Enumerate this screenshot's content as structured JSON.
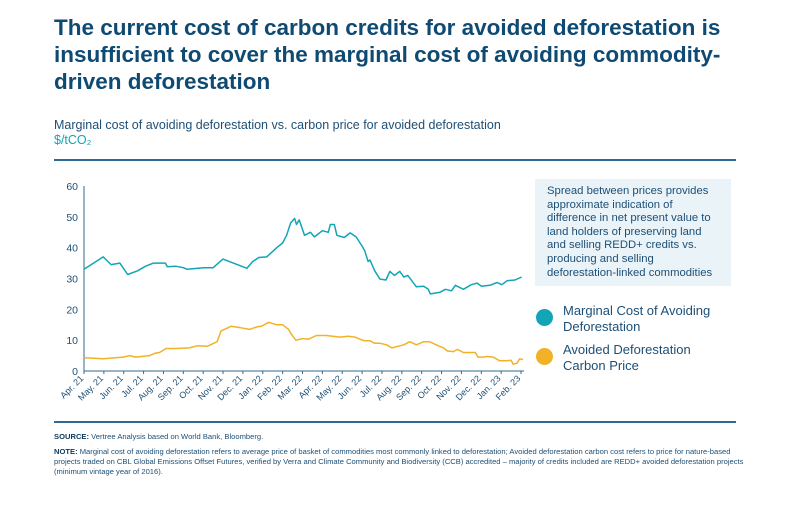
{
  "header": {
    "title": "The current cost of carbon credits for avoided deforestation is insufficient to cover the marginal cost of avoiding commodity-driven deforestation",
    "subtitle": "Marginal cost of avoiding deforestation vs. carbon price for avoided deforestation",
    "units": "$/tCO₂"
  },
  "annotation": "Spread between prices provides approximate indication of difference in net present value to land holders of preserving land and selling REDD+ credits vs. producing and selling deforestation-linked commodities",
  "footer": {
    "source_label": "SOURCE:",
    "source_text": " Vertree Analysis based on World Bank, Bloomberg.",
    "note_label": "NOTE:",
    "note_text": " Marginal cost of avoiding deforestation refers to average price of basket of commodities most commonly linked to deforestation; Avoided deforestation carbon cost refers to price for nature-based projects traded on CBL Global Emissions Offset Futures, verified by Verra and Climate Community and Biodiversity (CCB) accredited – majority of credits included are REDD+ avoided deforestation projects (minimum vintage year of 2016)."
  },
  "chart_data": {
    "type": "line",
    "title": "",
    "xlabel": "",
    "ylabel": "$/tCO₂",
    "ylim": [
      0,
      60
    ],
    "yticks": [
      0,
      10,
      20,
      30,
      40,
      50,
      60
    ],
    "xticks": [
      "Apr. 21",
      "May. 21",
      "Jun. 21",
      "Jul. 21",
      "Aug. 21",
      "Sep. 21",
      "Oct. 21",
      "Nov. 21",
      "Dec. 21",
      "Jan. 22",
      "Feb. 22",
      "Mar. 22",
      "Apr. 22",
      "May. 22",
      "Jun. 22",
      "Jul. 22",
      "Aug. 22",
      "Sep. 22",
      "Oct. 22",
      "Nov. 22",
      "Dec. 22",
      "Jan. 23",
      "Feb. 23"
    ],
    "xrange": [
      "2021-04-01",
      "2023-02-01"
    ],
    "grid": false,
    "legend_placement": "right",
    "series": [
      {
        "name": "Marginal Cost of Avoiding Deforestation",
        "color": "#12a5b5",
        "points": [
          [
            "2021-04-01",
            33
          ],
          [
            "2021-04-30",
            37
          ],
          [
            "2021-05-12",
            34.5
          ],
          [
            "2021-05-25",
            35
          ],
          [
            "2021-06-07",
            31.3
          ],
          [
            "2021-06-22",
            32.5
          ],
          [
            "2021-07-04",
            34
          ],
          [
            "2021-07-16",
            35
          ],
          [
            "2021-08-04",
            35
          ],
          [
            "2021-08-07",
            33.8
          ],
          [
            "2021-08-19",
            34
          ],
          [
            "2021-09-01",
            33.5
          ],
          [
            "2021-09-07",
            33
          ],
          [
            "2021-10-01",
            33.5
          ],
          [
            "2021-10-16",
            33.5
          ],
          [
            "2021-11-01",
            36.3
          ],
          [
            "2021-12-07",
            33.3
          ],
          [
            "2021-12-16",
            35.5
          ],
          [
            "2021-12-25",
            36.8
          ],
          [
            "2022-01-07",
            37
          ],
          [
            "2022-01-22",
            40
          ],
          [
            "2022-02-01",
            41.5
          ],
          [
            "2022-02-07",
            44
          ],
          [
            "2022-02-13",
            48
          ],
          [
            "2022-02-19",
            49.5
          ],
          [
            "2022-02-22",
            47.5
          ],
          [
            "2022-02-26",
            49
          ],
          [
            "2022-03-04",
            44
          ],
          [
            "2022-03-13",
            45
          ],
          [
            "2022-03-19",
            43.5
          ],
          [
            "2022-04-01",
            45.5
          ],
          [
            "2022-04-10",
            45
          ],
          [
            "2022-04-13",
            47.5
          ],
          [
            "2022-04-19",
            47.5
          ],
          [
            "2022-04-23",
            44
          ],
          [
            "2022-05-04",
            43.3
          ],
          [
            "2022-05-13",
            44.8
          ],
          [
            "2022-05-22",
            43.5
          ],
          [
            "2022-06-01",
            40.5
          ],
          [
            "2022-06-05",
            39
          ],
          [
            "2022-06-10",
            35.5
          ],
          [
            "2022-06-13",
            36
          ],
          [
            "2022-06-20",
            32.5
          ],
          [
            "2022-06-28",
            29.8
          ],
          [
            "2022-07-07",
            29.5
          ],
          [
            "2022-07-13",
            32.3
          ],
          [
            "2022-07-20",
            31
          ],
          [
            "2022-07-28",
            32.3
          ],
          [
            "2022-08-04",
            30.5
          ],
          [
            "2022-08-10",
            31
          ],
          [
            "2022-08-23",
            27.3
          ],
          [
            "2022-09-04",
            27.5
          ],
          [
            "2022-09-11",
            26.5
          ],
          [
            "2022-09-14",
            25
          ],
          [
            "2022-09-28",
            25.5
          ],
          [
            "2022-10-07",
            26.5
          ],
          [
            "2022-10-16",
            26
          ],
          [
            "2022-10-22",
            27.8
          ],
          [
            "2022-11-04",
            26.5
          ],
          [
            "2022-11-16",
            28
          ],
          [
            "2022-11-25",
            28.5
          ],
          [
            "2022-12-01",
            27.5
          ],
          [
            "2022-12-14",
            27.8
          ],
          [
            "2022-12-25",
            28.7
          ],
          [
            "2023-01-02",
            28
          ],
          [
            "2023-01-10",
            29.3
          ],
          [
            "2023-01-22",
            29.5
          ],
          [
            "2023-02-02",
            30.5
          ]
        ]
      },
      {
        "name": "Avoided Deforestation Carbon Price",
        "color": "#f2b227",
        "points": [
          [
            "2021-04-01",
            4.3
          ],
          [
            "2021-04-30",
            4
          ],
          [
            "2021-05-30",
            4.5
          ],
          [
            "2021-06-10",
            5
          ],
          [
            "2021-06-19",
            4.5
          ],
          [
            "2021-07-10",
            5
          ],
          [
            "2021-07-19",
            5.8
          ],
          [
            "2021-07-25",
            6
          ],
          [
            "2021-08-05",
            7.3
          ],
          [
            "2021-08-20",
            7.3
          ],
          [
            "2021-09-10",
            7.5
          ],
          [
            "2021-09-23",
            8.2
          ],
          [
            "2021-10-07",
            8
          ],
          [
            "2021-10-22",
            9.5
          ],
          [
            "2021-10-28",
            13
          ],
          [
            "2021-11-13",
            14.5
          ],
          [
            "2021-11-28",
            14
          ],
          [
            "2021-12-11",
            13.5
          ],
          [
            "2021-12-22",
            14.3
          ],
          [
            "2021-12-29",
            14.5
          ],
          [
            "2022-01-10",
            15.8
          ],
          [
            "2022-01-22",
            15
          ],
          [
            "2022-02-01",
            15
          ],
          [
            "2022-02-10",
            13.5
          ],
          [
            "2022-02-14",
            12
          ],
          [
            "2022-02-21",
            10
          ],
          [
            "2022-03-01",
            10.5
          ],
          [
            "2022-03-10",
            10.3
          ],
          [
            "2022-03-22",
            11.5
          ],
          [
            "2022-04-07",
            11.5
          ],
          [
            "2022-04-28",
            11
          ],
          [
            "2022-05-10",
            11.3
          ],
          [
            "2022-05-20",
            11
          ],
          [
            "2022-06-04",
            9.8
          ],
          [
            "2022-06-13",
            9.8
          ],
          [
            "2022-06-20",
            9
          ],
          [
            "2022-06-28",
            9
          ],
          [
            "2022-07-08",
            8.5
          ],
          [
            "2022-07-16",
            7.5
          ],
          [
            "2022-07-25",
            8
          ],
          [
            "2022-08-04",
            8.5
          ],
          [
            "2022-08-13",
            9.5
          ],
          [
            "2022-08-23",
            8.5
          ],
          [
            "2022-09-04",
            9.5
          ],
          [
            "2022-09-13",
            9.5
          ],
          [
            "2022-09-23",
            8.5
          ],
          [
            "2022-10-04",
            7.5
          ],
          [
            "2022-10-10",
            6.5
          ],
          [
            "2022-10-19",
            6.3
          ],
          [
            "2022-10-25",
            7
          ],
          [
            "2022-11-04",
            6
          ],
          [
            "2022-11-14",
            6
          ],
          [
            "2022-11-22",
            6
          ],
          [
            "2022-11-26",
            4.5
          ],
          [
            "2022-12-04",
            4.5
          ],
          [
            "2022-12-10",
            4.7
          ],
          [
            "2022-12-19",
            4.5
          ],
          [
            "2022-12-29",
            3.3
          ],
          [
            "2023-01-10",
            3.3
          ],
          [
            "2023-01-16",
            3.5
          ],
          [
            "2023-01-19",
            2.2
          ],
          [
            "2023-01-25",
            2.5
          ],
          [
            "2023-01-29",
            4
          ],
          [
            "2023-02-04",
            3.7
          ]
        ]
      }
    ]
  }
}
